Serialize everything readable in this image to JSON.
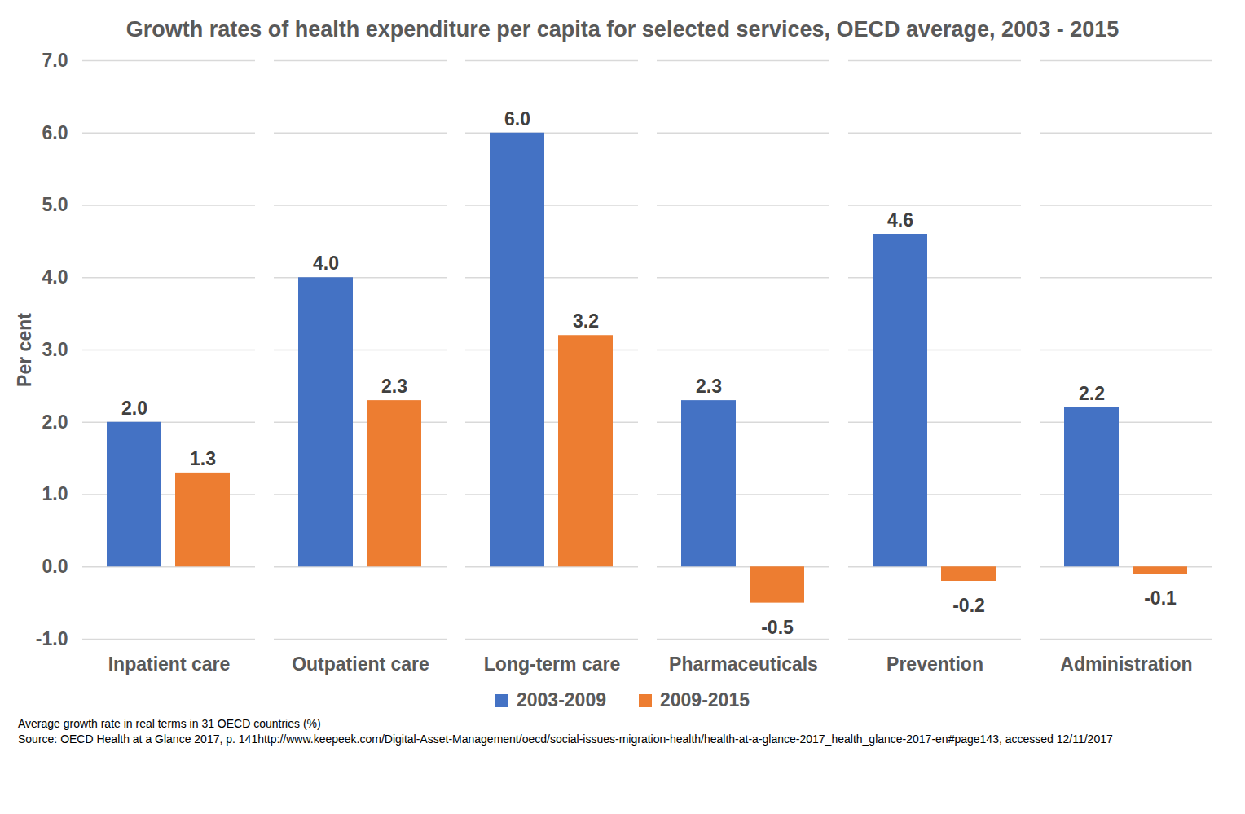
{
  "chart_data": {
    "type": "bar",
    "title": "Growth rates of health expenditure per capita for selected services, OECD average, 2003 - 2015",
    "y_label": "Per cent",
    "categories": [
      "Inpatient care",
      "Outpatient care",
      "Long-term care",
      "Pharmaceuticals",
      "Prevention",
      "Administration"
    ],
    "series": [
      {
        "name": "2003-2009",
        "color": "#4472c4",
        "values": [
          2.0,
          4.0,
          6.0,
          2.3,
          4.6,
          2.2
        ],
        "value_labels": [
          "2.0",
          "4.0",
          "6.0",
          "2.3",
          "4.6",
          "2.2"
        ]
      },
      {
        "name": "2009-2015",
        "color": "#ed7d31",
        "values": [
          1.3,
          2.3,
          3.2,
          -0.5,
          -0.2,
          -0.1
        ],
        "value_labels": [
          "1.3",
          "2.3",
          "3.2",
          "-0.5",
          "-0.2",
          "-0.1"
        ]
      }
    ],
    "ylim": [
      -1,
      7
    ],
    "yticks": [
      {
        "value": -1,
        "label": "-1.0"
      },
      {
        "value": 0,
        "label": "0.0"
      },
      {
        "value": 1,
        "label": "1.0"
      },
      {
        "value": 2,
        "label": "2.0"
      },
      {
        "value": 3,
        "label": "3.0"
      },
      {
        "value": 4,
        "label": "4.0"
      },
      {
        "value": 5,
        "label": "5.0"
      },
      {
        "value": 6,
        "label": "6.0"
      },
      {
        "value": 7,
        "label": "7.0"
      }
    ],
    "grid": true,
    "data_labels": true,
    "legend": "bottom",
    "notes": [
      "Average growth rate in real terms in 31 OECD countries (%)",
      "Source: OECD Health at a Glance 2017, p. 141http://www.keepeek.com/Digital-Asset-Management/oecd/social-issues-migration-health/health-at-a-glance-2017_health_glance-2017-en#page143, accessed 12/11/2017"
    ]
  }
}
